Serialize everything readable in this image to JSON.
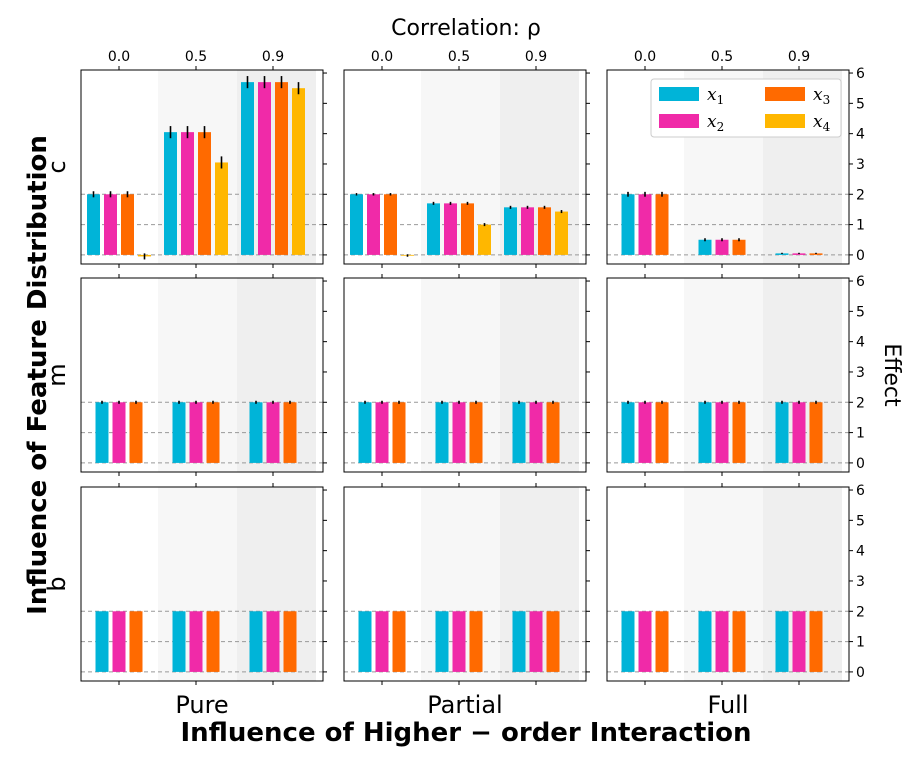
{
  "chart_data": {
    "type": "bar",
    "title": "Correlation: ρ",
    "xlabel": "Influence of Higher − order Interaction",
    "ylabel": "Influence of Feature Distribution",
    "right_ylabel": "Effect",
    "columns": [
      "Pure",
      "Partial",
      "Full"
    ],
    "rows": [
      "c",
      "m",
      "b"
    ],
    "categories": [
      "0.0",
      "0.5",
      "0.9"
    ],
    "ylim": [
      -0.3,
      6.1
    ],
    "yticks": [
      "0",
      "1",
      "2",
      "3",
      "4",
      "5",
      "6"
    ],
    "reference_lines": [
      0,
      1,
      2
    ],
    "legend_position": "upper right",
    "series": [
      {
        "name": "x1",
        "label": "x",
        "sub": "1",
        "color": "#00b4d8"
      },
      {
        "name": "x2",
        "label": "x",
        "sub": "2",
        "color": "#f02aa8"
      },
      {
        "name": "x3",
        "label": "x",
        "sub": "3",
        "color": "#ff6a00"
      },
      {
        "name": "x4",
        "label": "x",
        "sub": "4",
        "color": "#ffb700"
      }
    ],
    "panels": [
      {
        "row": "c",
        "col": "Pure",
        "values": [
          [
            2.0,
            2.0,
            2.0,
            -0.05
          ],
          [
            4.05,
            4.05,
            4.05,
            3.05
          ],
          [
            5.7,
            5.7,
            5.7,
            5.5
          ]
        ],
        "errors": [
          [
            0.1,
            0.1,
            0.1,
            0.1
          ],
          [
            0.2,
            0.2,
            0.2,
            0.2
          ],
          [
            0.2,
            0.2,
            0.2,
            0.2
          ]
        ]
      },
      {
        "row": "c",
        "col": "Partial",
        "values": [
          [
            2.0,
            2.0,
            2.0,
            -0.02
          ],
          [
            1.7,
            1.7,
            1.7,
            1.0
          ],
          [
            1.57,
            1.57,
            1.57,
            1.43
          ]
        ],
        "errors": [
          [
            0.04,
            0.04,
            0.04,
            0.04
          ],
          [
            0.05,
            0.05,
            0.05,
            0.05
          ],
          [
            0.05,
            0.05,
            0.05,
            0.05
          ]
        ]
      },
      {
        "row": "c",
        "col": "Full",
        "values": [
          [
            2.0,
            2.0,
            2.0
          ],
          [
            0.5,
            0.5,
            0.5
          ],
          [
            0.05,
            0.05,
            0.05
          ]
        ],
        "errors": [
          [
            0.08,
            0.08,
            0.08
          ],
          [
            0.05,
            0.05,
            0.05
          ],
          [
            0.02,
            0.02,
            0.02
          ]
        ]
      },
      {
        "row": "m",
        "col": "Pure",
        "values": [
          [
            2.0,
            2.0,
            2.0
          ],
          [
            2.0,
            2.0,
            2.0
          ],
          [
            2.0,
            2.0,
            2.0
          ]
        ],
        "errors": [
          [
            0.05,
            0.05,
            0.05
          ],
          [
            0.05,
            0.05,
            0.05
          ],
          [
            0.05,
            0.05,
            0.05
          ]
        ]
      },
      {
        "row": "m",
        "col": "Partial",
        "values": [
          [
            2.0,
            2.0,
            2.0
          ],
          [
            2.0,
            2.0,
            2.0
          ],
          [
            2.0,
            2.0,
            2.0
          ]
        ],
        "errors": [
          [
            0.05,
            0.05,
            0.05
          ],
          [
            0.05,
            0.05,
            0.05
          ],
          [
            0.05,
            0.05,
            0.05
          ]
        ]
      },
      {
        "row": "m",
        "col": "Full",
        "values": [
          [
            2.0,
            2.0,
            2.0
          ],
          [
            2.0,
            2.0,
            2.0
          ],
          [
            2.0,
            2.0,
            2.0
          ]
        ],
        "errors": [
          [
            0.05,
            0.05,
            0.05
          ],
          [
            0.05,
            0.05,
            0.05
          ],
          [
            0.05,
            0.05,
            0.05
          ]
        ]
      },
      {
        "row": "b",
        "col": "Pure",
        "values": [
          [
            2.0,
            2.0,
            2.0
          ],
          [
            2.0,
            2.0,
            2.0
          ],
          [
            2.0,
            2.0,
            2.0
          ]
        ],
        "errors": [
          [
            0.0,
            0.0,
            0.0
          ],
          [
            0.0,
            0.0,
            0.0
          ],
          [
            0.0,
            0.0,
            0.0
          ]
        ]
      },
      {
        "row": "b",
        "col": "Partial",
        "values": [
          [
            2.0,
            2.0,
            2.0
          ],
          [
            2.0,
            2.0,
            2.0
          ],
          [
            2.0,
            2.0,
            2.0
          ]
        ],
        "errors": [
          [
            0.0,
            0.0,
            0.0
          ],
          [
            0.0,
            0.0,
            0.0
          ],
          [
            0.0,
            0.0,
            0.0
          ]
        ]
      },
      {
        "row": "b",
        "col": "Full",
        "values": [
          [
            2.0,
            2.0,
            2.0
          ],
          [
            2.0,
            2.0,
            2.0
          ],
          [
            2.0,
            2.0,
            2.0
          ]
        ],
        "errors": [
          [
            0.0,
            0.0,
            0.0
          ],
          [
            0.0,
            0.0,
            0.0
          ],
          [
            0.0,
            0.0,
            0.0
          ]
        ]
      }
    ]
  }
}
